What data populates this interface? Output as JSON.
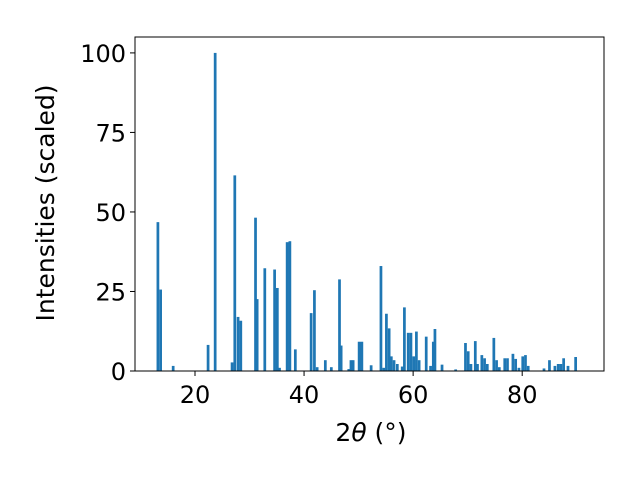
{
  "chart_data": {
    "type": "bar",
    "title": "",
    "xlabel_prefix": "2",
    "xlabel_symbol": "θ",
    "xlabel_suffix": " (°)",
    "ylabel": "Intensities (scaled)",
    "xlim": [
      9,
      95
    ],
    "ylim": [
      0,
      105
    ],
    "x_ticks": [
      20,
      40,
      60,
      80
    ],
    "y_ticks": [
      0,
      25,
      50,
      75,
      100
    ],
    "bar_width_units": 0.5,
    "bar_color": "#1f77b4",
    "legend": "none",
    "grid": false,
    "x": [
      13.2,
      13.7,
      16.0,
      22.4,
      23.7,
      26.8,
      27.3,
      27.9,
      28.4,
      31.1,
      31.4,
      32.8,
      34.6,
      35.1,
      35.5,
      36.9,
      37.4,
      38.4,
      41.3,
      41.9,
      42.4,
      43.9,
      45.0,
      46.5,
      46.8,
      48.2,
      48.6,
      49.0,
      50.1,
      50.6,
      52.3,
      54.1,
      54.6,
      55.1,
      55.6,
      56.0,
      56.5,
      57.1,
      58.0,
      58.4,
      59.1,
      59.6,
      60.1,
      60.6,
      61.1,
      62.4,
      63.2,
      63.7,
      64.0,
      65.3,
      67.8,
      69.6,
      70.1,
      70.6,
      71.4,
      71.8,
      72.6,
      73.1,
      73.6,
      74.8,
      75.3,
      75.8,
      76.8,
      77.3,
      78.3,
      78.8,
      79.4,
      80.1,
      80.6,
      81.1,
      84.0,
      85.0,
      86.0,
      86.6,
      87.1,
      87.6,
      88.4,
      89.8
    ],
    "values": [
      46.8,
      25.6,
      1.6,
      8.2,
      100,
      2.7,
      61.5,
      17.0,
      15.8,
      48.2,
      22.6,
      32.3,
      31.9,
      26.1,
      1.0,
      40.5,
      40.8,
      6.8,
      18.2,
      25.4,
      1.2,
      3.4,
      1.2,
      28.8,
      8.0,
      0.6,
      3.4,
      3.4,
      9.2,
      9.2,
      1.8,
      33.0,
      1.0,
      18.0,
      13.4,
      4.6,
      3.4,
      2.2,
      1.4,
      20.0,
      12.0,
      12.0,
      4.6,
      12.4,
      3.4,
      10.8,
      1.6,
      9.2,
      13.2,
      2.0,
      0.5,
      8.8,
      6.2,
      2.2,
      9.4,
      2.2,
      5.0,
      4.0,
      2.2,
      10.4,
      3.4,
      1.2,
      4.0,
      4.0,
      5.4,
      3.8,
      1.0,
      4.6,
      5.0,
      1.6,
      0.8,
      3.4,
      1.6,
      2.2,
      2.2,
      4.0,
      1.6,
      4.4
    ]
  }
}
